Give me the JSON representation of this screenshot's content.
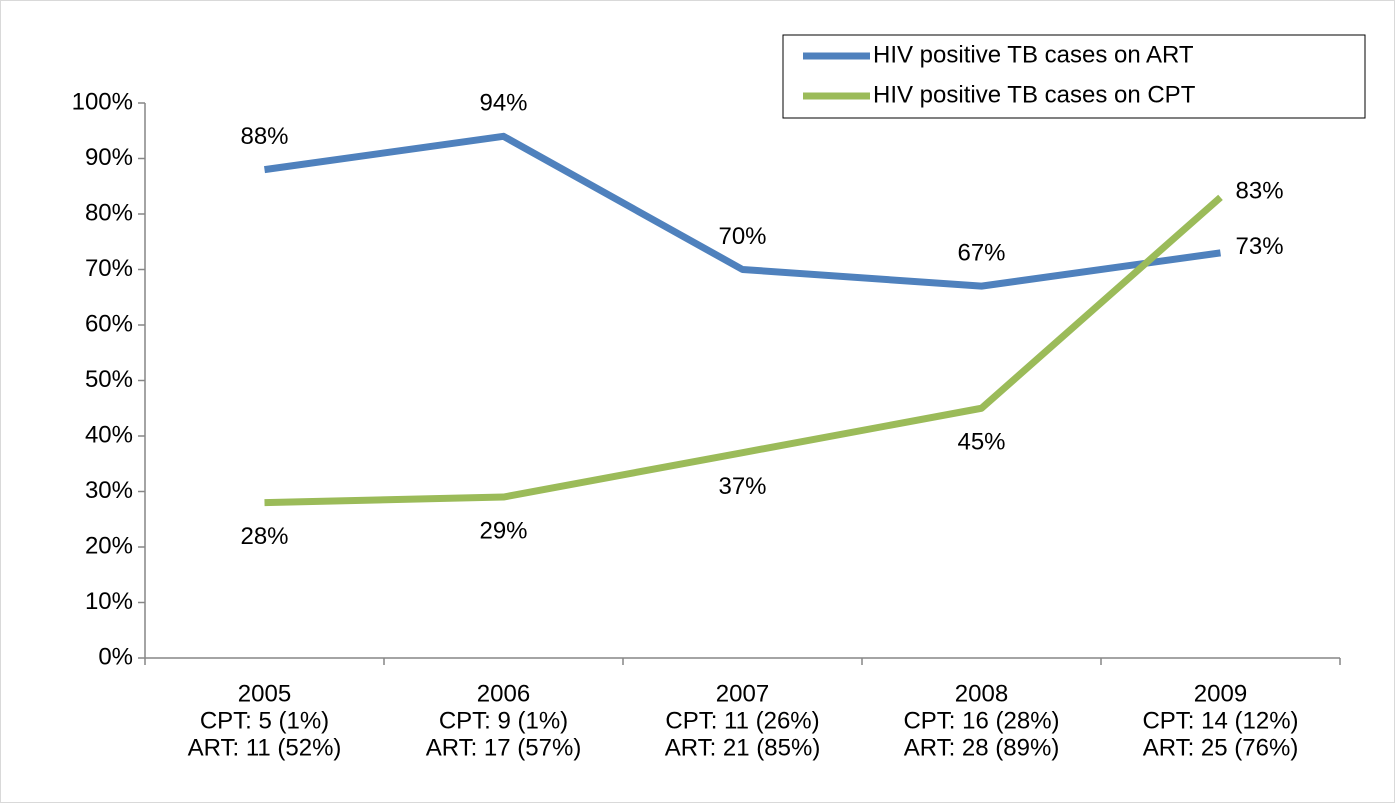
{
  "chart_data": {
    "type": "line",
    "categories": [
      [
        "2005",
        "CPT: 5 (1%)",
        "ART: 11 (52%)"
      ],
      [
        "2006",
        "CPT: 9 (1%)",
        "ART: 17 (57%)"
      ],
      [
        "2007",
        "CPT: 11 (26%)",
        "ART: 21 (85%)"
      ],
      [
        "2008",
        "CPT: 16 (28%)",
        "ART: 28 (89%)"
      ],
      [
        "2009",
        "CPT: 14 (12%)",
        "ART: 25 (76%)"
      ]
    ],
    "series": [
      {
        "name": "HIV positive TB cases on ART",
        "color": "#4f81bd",
        "values": [
          88,
          94,
          70,
          67,
          73
        ],
        "value_labels": [
          "88%",
          "94%",
          "70%",
          "67%",
          "73%"
        ]
      },
      {
        "name": "HIV positive TB cases on CPT",
        "color": "#9bbb59",
        "values": [
          28,
          29,
          37,
          45,
          83
        ],
        "value_labels": [
          "28%",
          "29%",
          "37%",
          "45%",
          "83%"
        ]
      }
    ],
    "ylim": [
      0,
      100
    ],
    "yticks": [
      {
        "value": 0,
        "label": "0%"
      },
      {
        "value": 10,
        "label": "10%"
      },
      {
        "value": 20,
        "label": "20%"
      },
      {
        "value": 30,
        "label": "30%"
      },
      {
        "value": 40,
        "label": "40%"
      },
      {
        "value": 50,
        "label": "50%"
      },
      {
        "value": 60,
        "label": "60%"
      },
      {
        "value": 70,
        "label": "70%"
      },
      {
        "value": 80,
        "label": "80%"
      },
      {
        "value": 90,
        "label": "90%"
      },
      {
        "value": 100,
        "label": "100%"
      }
    ],
    "grid": false,
    "legend": "top-right"
  }
}
